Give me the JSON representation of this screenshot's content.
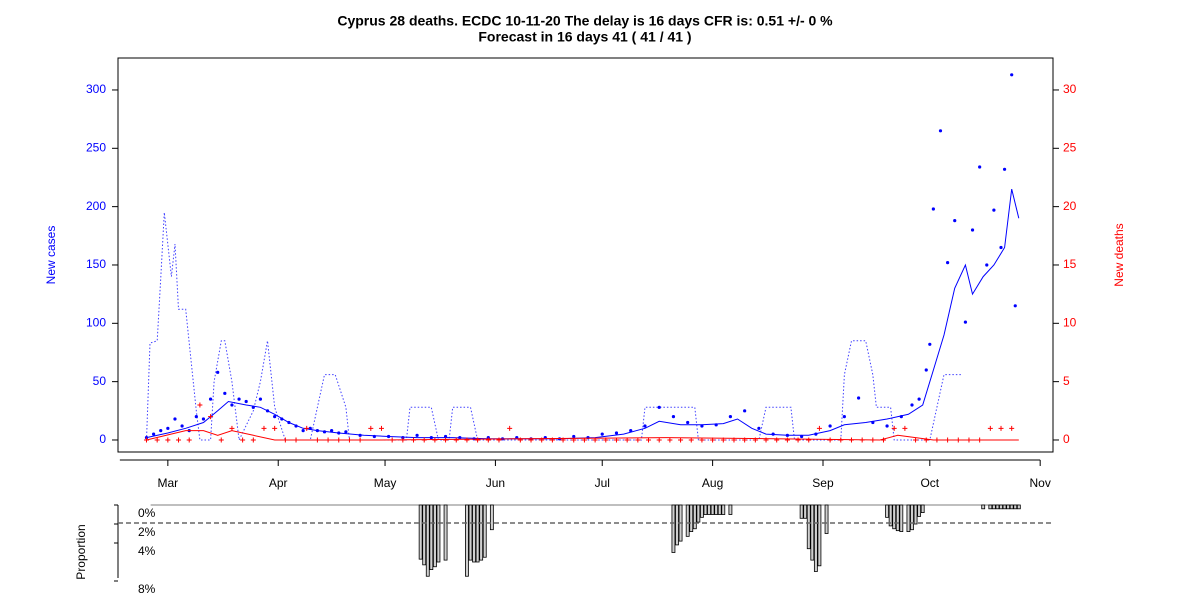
{
  "chart_data": [
    {
      "type": "line",
      "title": "Cyprus 28 deaths. ECDC 10-11-20 The delay is 16 days CFR is: 0.51 +/- 0 %",
      "subtitle": "Forecast in 16 days 41 ( 41 / 41 )",
      "ylabel": "New cases",
      "y2label": "New deaths",
      "ylabel_color": "#0000ff",
      "y2label_color": "#ff0000",
      "xlim": [
        -14,
        248.6
      ],
      "xticks": [
        {
          "value": 0,
          "label": "Mar"
        },
        {
          "value": 31,
          "label": "Apr"
        },
        {
          "value": 61,
          "label": "May"
        },
        {
          "value": 92,
          "label": "Jun"
        },
        {
          "value": 122,
          "label": "Jul"
        },
        {
          "value": 153,
          "label": "Aug"
        },
        {
          "value": 184,
          "label": "Sep"
        },
        {
          "value": 214,
          "label": "Oct"
        },
        {
          "value": 245,
          "label": "Nov"
        }
      ],
      "ylim": [
        -10.3,
        327.4
      ],
      "yticks": [
        0,
        50,
        100,
        150,
        200,
        250,
        300
      ],
      "y2lim": [
        -1.03,
        32.74
      ],
      "y2ticks": [
        0,
        5,
        10,
        15,
        20,
        25,
        30
      ],
      "series": [
        {
          "style": "dotted",
          "color": "#4040ff",
          "x": [
            -6,
            -5,
            -3,
            -2,
            -1,
            1,
            2,
            3,
            5,
            8,
            9,
            12,
            13,
            15,
            16,
            18,
            20,
            24,
            26,
            28,
            30,
            33,
            40,
            42,
            44,
            47,
            50,
            51,
            67,
            68,
            74,
            76,
            79,
            80,
            85,
            87,
            133,
            134,
            148,
            149,
            166,
            168,
            175,
            176,
            189,
            190,
            192,
            196,
            198,
            199,
            203,
            204,
            214,
            216,
            218,
            223
          ],
          "values": [
            0,
            83,
            85,
            138,
            195,
            140,
            168,
            112,
            112,
            25,
            0,
            0,
            50,
            85,
            85,
            50,
            0,
            25,
            50,
            85,
            28,
            0,
            0,
            28,
            56,
            56,
            28,
            0,
            0,
            28,
            28,
            0,
            0,
            28,
            28,
            0,
            0,
            28,
            28,
            0,
            0,
            28,
            28,
            0,
            0,
            56,
            85,
            85,
            56,
            28,
            28,
            0,
            0,
            28,
            56,
            56
          ]
        },
        {
          "style": "line",
          "color": "#0000ff",
          "x": [
            -6,
            0,
            5,
            10,
            14,
            17,
            22,
            26,
            30,
            34,
            38,
            42,
            48,
            55,
            62,
            70,
            80,
            90,
            100,
            110,
            120,
            128,
            134,
            138,
            144,
            150,
            156,
            160,
            164,
            168,
            174,
            180,
            186,
            190,
            196,
            202,
            208,
            212,
            215,
            218,
            221,
            224,
            226,
            229,
            232,
            235,
            237,
            239
          ],
          "values": [
            2,
            6,
            10,
            15,
            25,
            33,
            30,
            28,
            22,
            15,
            10,
            8,
            6,
            4,
            3,
            2,
            2,
            1,
            1,
            1,
            2,
            5,
            10,
            16,
            13,
            13,
            14,
            18,
            10,
            5,
            4,
            4,
            8,
            13,
            15,
            18,
            22,
            30,
            60,
            90,
            130,
            150,
            125,
            140,
            150,
            165,
            215,
            190
          ]
        },
        {
          "style": "points",
          "color": "#0000ff",
          "x": [
            -6,
            -4,
            -2,
            0,
            2,
            4,
            6,
            8,
            10,
            12,
            14,
            16,
            18,
            20,
            22,
            24,
            26,
            28,
            30,
            32,
            34,
            36,
            38,
            40,
            42,
            44,
            46,
            48,
            50,
            54,
            58,
            62,
            66,
            70,
            74,
            78,
            82,
            86,
            90,
            94,
            98,
            102,
            106,
            110,
            114,
            118,
            122,
            126,
            130,
            134,
            138,
            142,
            146,
            150,
            154,
            158,
            162,
            166,
            170,
            174,
            178,
            182,
            186,
            190,
            194,
            198,
            202,
            206,
            209,
            211,
            213,
            214,
            215,
            217,
            219,
            221,
            224,
            226,
            228,
            230,
            232,
            234,
            235,
            237,
            238
          ],
          "values": [
            2,
            5,
            8,
            10,
            18,
            12,
            8,
            20,
            18,
            35,
            58,
            40,
            30,
            35,
            33,
            28,
            35,
            25,
            20,
            18,
            15,
            12,
            8,
            10,
            8,
            7,
            8,
            6,
            7,
            4,
            3,
            3,
            2,
            4,
            2,
            3,
            2,
            1,
            2,
            1,
            2,
            1,
            2,
            1,
            3,
            2,
            5,
            6,
            8,
            12,
            28,
            20,
            15,
            12,
            13,
            20,
            25,
            10,
            5,
            4,
            3,
            5,
            12,
            20,
            36,
            15,
            12,
            20,
            30,
            35,
            60,
            82,
            198,
            265,
            152,
            188,
            101,
            180,
            234,
            150,
            197,
            165,
            232,
            313,
            115
          ]
        },
        {
          "style": "line",
          "color": "#ff0000",
          "axis": "y2",
          "x": [
            -6,
            5,
            10,
            14,
            18,
            24,
            30,
            60,
            140,
            200,
            205,
            210,
            215,
            239
          ],
          "values": [
            0,
            0.8,
            0.8,
            0.4,
            0.8,
            0.4,
            0,
            0,
            0.2,
            0,
            0.4,
            0.2,
            0,
            0
          ]
        },
        {
          "style": "plus",
          "color": "#ff0000",
          "axis": "y2",
          "x": [
            -6,
            -3,
            0,
            3,
            6,
            9,
            12,
            15,
            18,
            21,
            24,
            27,
            30,
            33,
            36,
            39,
            42,
            45,
            48,
            51,
            54,
            57,
            60,
            63,
            66,
            69,
            72,
            75,
            78,
            81,
            84,
            87,
            90,
            93,
            96,
            99,
            102,
            105,
            108,
            111,
            114,
            117,
            120,
            123,
            126,
            129,
            132,
            135,
            138,
            141,
            144,
            147,
            150,
            153,
            156,
            159,
            162,
            165,
            168,
            171,
            174,
            177,
            180,
            183,
            186,
            189,
            192,
            195,
            198,
            201,
            204,
            207,
            210,
            213,
            216,
            219,
            222,
            225,
            228,
            231,
            234,
            237
          ],
          "values": [
            0,
            0,
            0,
            0,
            0,
            3,
            2,
            0,
            1,
            0,
            0,
            1,
            1,
            0,
            0,
            1,
            0,
            0,
            0,
            0,
            0,
            1,
            1,
            0,
            0,
            0,
            0,
            0,
            0,
            0,
            0,
            0,
            0,
            0,
            1,
            0,
            0,
            0,
            0,
            0,
            0,
            0,
            0,
            0,
            0,
            0,
            0,
            0,
            0,
            0,
            0,
            0,
            0,
            0,
            0,
            0,
            0,
            0,
            0,
            0,
            0,
            0,
            0,
            1,
            0,
            0,
            0,
            0,
            0,
            0,
            1,
            1,
            0,
            0,
            0,
            0,
            0,
            0,
            0,
            1,
            1,
            1
          ]
        }
      ]
    },
    {
      "type": "bar",
      "ylabel": "Proportion",
      "xlim": [
        -14,
        248.6
      ],
      "ylim": [
        0,
        8
      ],
      "yticks": [
        {
          "value": 0,
          "label": "0%"
        },
        {
          "value": 2,
          "label": "2%"
        },
        {
          "value": 4,
          "label": "4%"
        },
        {
          "value": 8,
          "label": "8%"
        }
      ],
      "hline": 1.9,
      "color": "#d0d0d0",
      "x": [
        71,
        72,
        73,
        74,
        75,
        76,
        78,
        84,
        85,
        86,
        87,
        88,
        89,
        91,
        142,
        143,
        144,
        146,
        147,
        148,
        149,
        150,
        151,
        152,
        153,
        154,
        155,
        156,
        158,
        178,
        179,
        180,
        181,
        182,
        183,
        185,
        202,
        203,
        204,
        205,
        206,
        208,
        209,
        210,
        211,
        212,
        229,
        231,
        232,
        233,
        234,
        235,
        236,
        237,
        238,
        239
      ],
      "values": [
        5.7,
        6.3,
        7.5,
        6.8,
        6.5,
        6.0,
        5.8,
        7.5,
        5.8,
        6.0,
        6.0,
        5.8,
        5.5,
        2.6,
        5.0,
        4.2,
        3.8,
        3.3,
        2.8,
        2.5,
        1.8,
        1.3,
        1.0,
        1.0,
        1.0,
        1.0,
        1.0,
        1.0,
        1.0,
        1.4,
        1.4,
        4.6,
        5.8,
        7.0,
        6.4,
        3.0,
        1.3,
        2.2,
        2.5,
        2.7,
        2.8,
        2.8,
        2.6,
        2.0,
        1.2,
        0.8,
        0.4,
        0.4,
        0.4,
        0.4,
        0.4,
        0.4,
        0.4,
        0.4,
        0.4,
        0.4
      ]
    }
  ]
}
